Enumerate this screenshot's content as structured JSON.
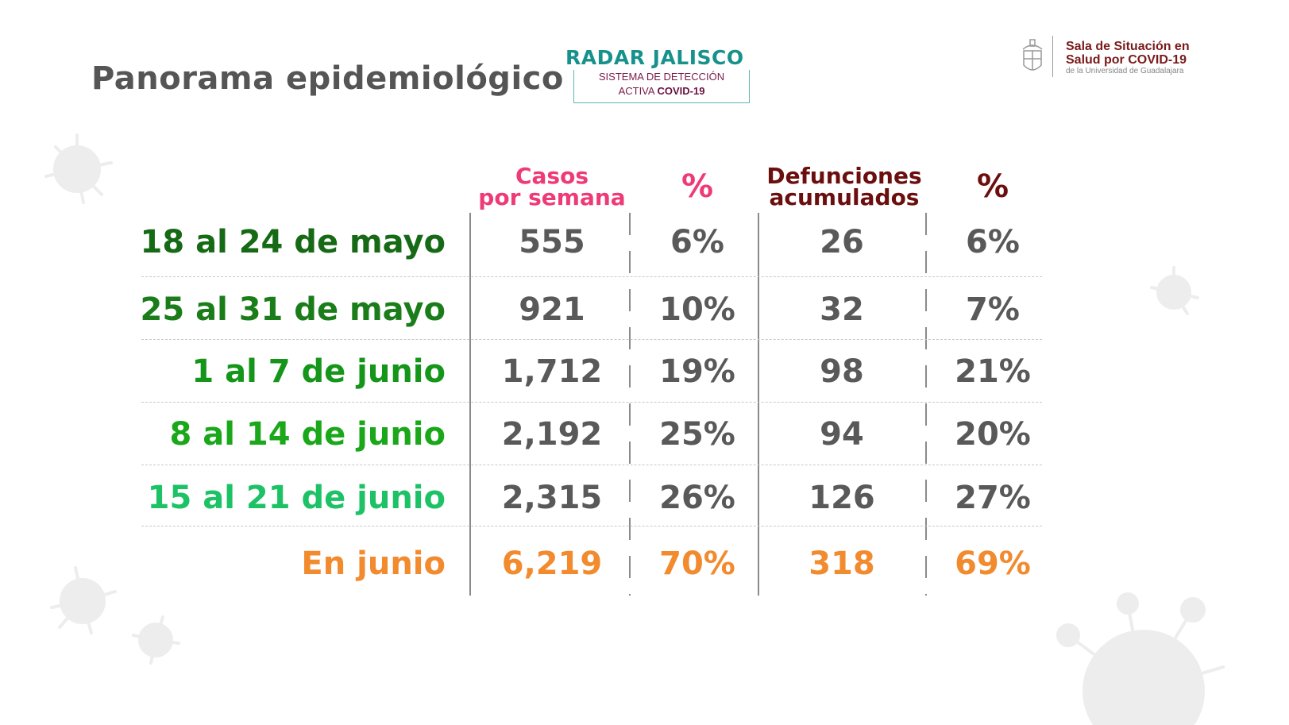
{
  "header": {
    "title": "Panorama epidemiológico",
    "radar_logo": {
      "name": "RADAR JALISCO",
      "line1": "SISTEMA DE DETECCIÓN",
      "line2_prefix": "ACTIVA",
      "line2_bold": "COVID-19"
    },
    "sala_logo": {
      "line1": "Sala de Situación en",
      "line2": "Salud por COVID-19",
      "line3": "de la Universidad de Guadalajara",
      "icon": "udg-crest-icon"
    }
  },
  "table": {
    "columns": [
      {
        "line1": "Casos",
        "line2": "por semana"
      },
      {
        "line1": "%",
        "line2": ""
      },
      {
        "line1": "Defunciones",
        "line2": "acumulados"
      },
      {
        "line1": "%",
        "line2": ""
      }
    ],
    "rows": [
      {
        "label": "18 al 24 de mayo",
        "color": "#166a16",
        "values": [
          "555",
          "6%",
          "26",
          "6%"
        ]
      },
      {
        "label": "25 al 31 de mayo",
        "color": "#1a7d1a",
        "values": [
          "921",
          "10%",
          "32",
          "7%"
        ]
      },
      {
        "label": "1 al 7 de junio",
        "color": "#15961a",
        "values": [
          "1,712",
          "19%",
          "98",
          "21%"
        ]
      },
      {
        "label": "8 al 14 de junio",
        "color": "#1aa81a",
        "values": [
          "2,192",
          "25%",
          "94",
          "20%"
        ]
      },
      {
        "label": "15 al 21 de junio",
        "color": "#1ec266",
        "values": [
          "2,315",
          "26%",
          "126",
          "27%"
        ]
      },
      {
        "label": "En junio",
        "color": "#f28a2e",
        "values": [
          "6,219",
          "70%",
          "318",
          "69%"
        ],
        "total": true
      }
    ]
  },
  "colors": {
    "header_cases": "#ee3a76",
    "header_deaths": "#6b0e0e",
    "values": "#595959",
    "total": "#f28a2e",
    "teal": "#17918c"
  }
}
